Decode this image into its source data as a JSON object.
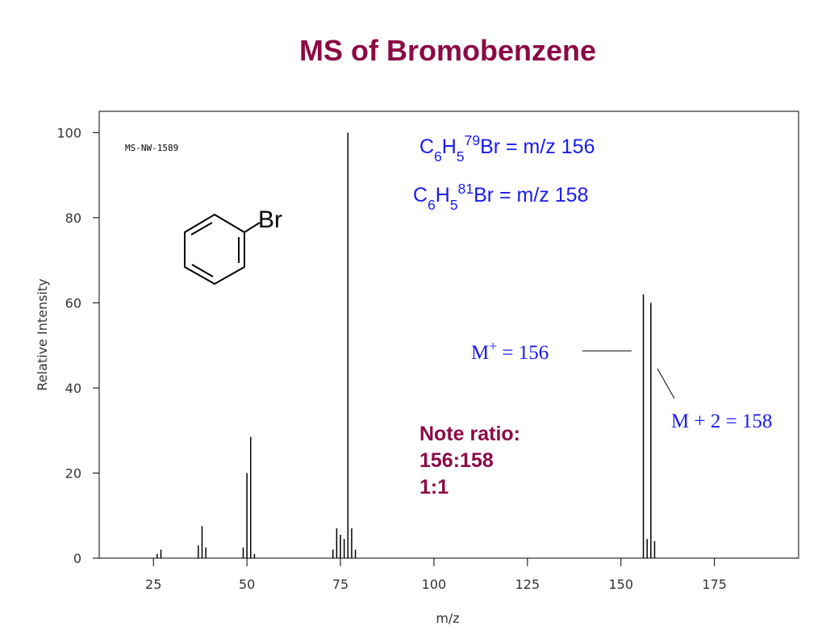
{
  "chart_data": {
    "type": "spectrum",
    "title": "MS of Bromobenzene",
    "subtitle": "MS-NW-1589",
    "x_label": "m/z",
    "y_label": "Relative Intensity",
    "x": [
      26,
      27,
      37,
      38,
      39,
      49,
      50,
      51,
      52,
      73,
      74,
      75,
      76,
      77,
      78,
      79,
      156,
      157,
      158,
      159
    ],
    "values": [
      1,
      2,
      3,
      7.5,
      2.5,
      2.5,
      20,
      28.5,
      1,
      2,
      7,
      5.5,
      4.5,
      100,
      7,
      2,
      62,
      4.5,
      60,
      4
    ],
    "color": "#000000",
    "xlim": [
      10.5,
      197.5
    ],
    "ylim": [
      0,
      105
    ],
    "xticks": [
      25,
      50,
      75,
      100,
      125,
      150,
      175
    ],
    "yticks": [
      0,
      20,
      40,
      60,
      80,
      100
    ],
    "structure_label": "Br",
    "formulas": [
      [
        {
          "text": "C"
        },
        {
          "text": "6",
          "shift": "sub"
        },
        {
          "text": "H"
        },
        {
          "text": "5",
          "shift": "sub"
        },
        {
          "text": "79",
          "shift": "super"
        },
        {
          "text": "Br = m/z 156"
        }
      ],
      [
        {
          "text": "C"
        },
        {
          "text": "6",
          "shift": "sub"
        },
        {
          "text": "H"
        },
        {
          "text": "5",
          "shift": "sub"
        },
        {
          "text": "81",
          "shift": "super"
        },
        {
          "text": "Br = m/z 158"
        }
      ]
    ],
    "peak_labels": [
      [
        {
          "text": "M"
        },
        {
          "text": "+",
          "shift": "super"
        },
        {
          "text": " = 156"
        }
      ],
      [
        {
          "text": "M + 2 = 158"
        }
      ]
    ],
    "note": [
      "Note ratio:",
      "156:158",
      "1:1"
    ]
  }
}
